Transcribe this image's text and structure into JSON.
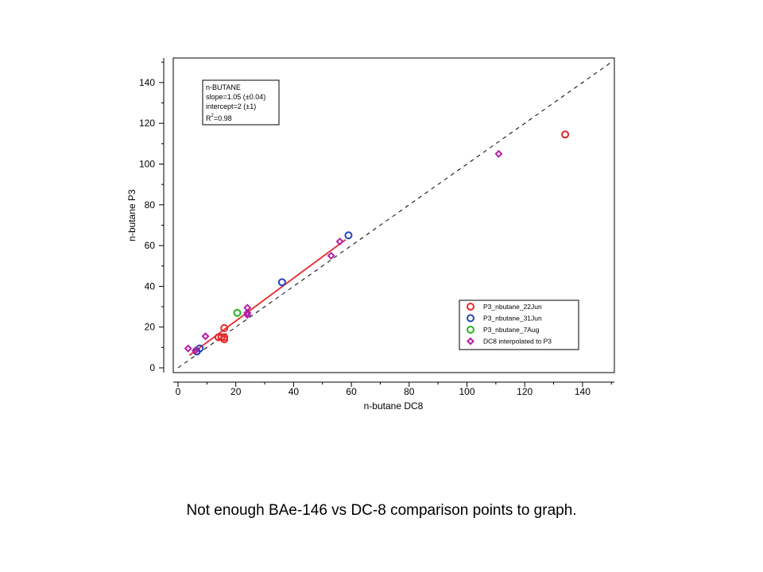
{
  "caption": "Not enough BAe-146 vs DC-8 comparison points to graph.",
  "chart_data": {
    "type": "scatter",
    "xlabel": "n-butane DC8",
    "ylabel": "n-butane P3",
    "xlim": [
      -2,
      152
    ],
    "ylim": [
      -2,
      152
    ],
    "xticks": [
      0,
      20,
      40,
      60,
      80,
      100,
      120,
      140
    ],
    "yticks": [
      0,
      20,
      40,
      60,
      80,
      100,
      120,
      140
    ],
    "grid": false,
    "legend_position": "bottom-right",
    "stats_box": {
      "line1": "n-BUTANE",
      "line2": "slope=1.05 (±0.04)",
      "line3": "intercept=2 (±1)",
      "line4_prefix": "R",
      "line4_sup": "2",
      "line4_suffix": "=0.98"
    },
    "reference_line": {
      "style": "dashed",
      "color": "#000000",
      "from": [
        0,
        0
      ],
      "to": [
        150,
        150
      ]
    },
    "fit_line": {
      "color": "#e8262a",
      "x_start": 4,
      "x_end": 58,
      "slope": 1.05,
      "intercept": 2
    },
    "series": [
      {
        "name": "P3_nbutane_22Jun",
        "marker": "circle",
        "color": "#e8262a",
        "points": [
          [
            14,
            15
          ],
          [
            15,
            15
          ],
          [
            16,
            14
          ],
          [
            16,
            15
          ],
          [
            16,
            19.5
          ],
          [
            134,
            114.5
          ]
        ]
      },
      {
        "name": "P3_nbutane_31Jun",
        "marker": "circle",
        "color": "#2244b8",
        "points": [
          [
            6.5,
            8
          ],
          [
            7.5,
            9.5
          ],
          [
            36,
            42
          ],
          [
            59,
            65
          ]
        ]
      },
      {
        "name": "P3_nbutane_7Aug",
        "marker": "circle",
        "color": "#1fb51f",
        "points": [
          [
            20.5,
            27
          ]
        ]
      },
      {
        "name": "DC8 interpolated to P3",
        "marker": "diamond",
        "color": "#b51fa8",
        "points": [
          [
            3.5,
            9.5
          ],
          [
            6,
            8.5
          ],
          [
            9.5,
            15.5
          ],
          [
            24,
            26
          ],
          [
            24,
            27
          ],
          [
            24,
            29.5
          ],
          [
            53,
            55
          ],
          [
            56,
            62
          ],
          [
            111,
            105
          ]
        ]
      }
    ]
  }
}
